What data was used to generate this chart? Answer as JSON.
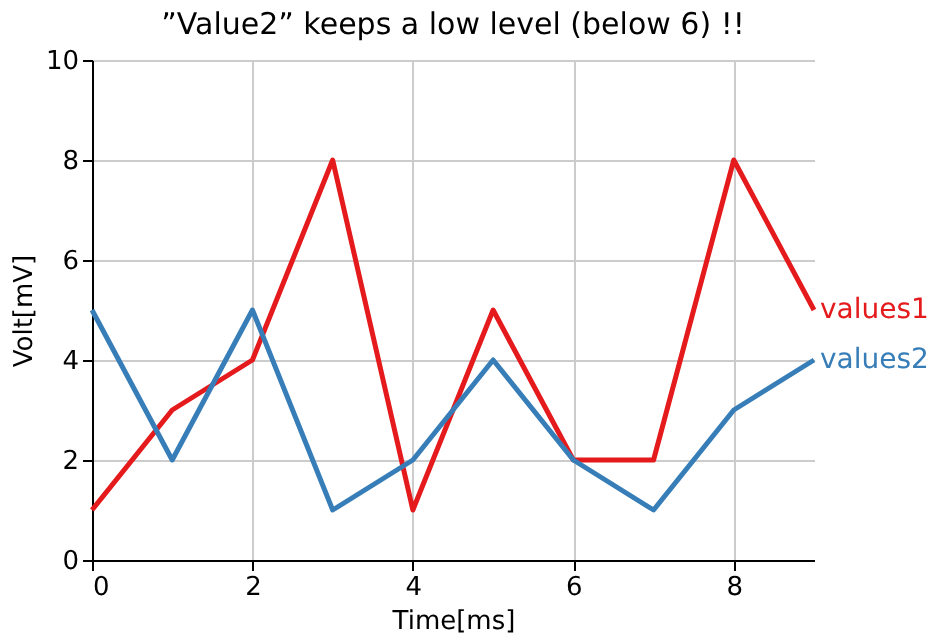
{
  "chart_data": {
    "type": "line",
    "title": "”Value2” keeps a low level (below 6) !!",
    "xlabel": "Time[ms]",
    "ylabel": "Volt[mV]",
    "x": [
      0,
      1,
      2,
      3,
      4,
      5,
      6,
      7,
      8,
      9
    ],
    "series": [
      {
        "name": "values1",
        "color": "#e41a1c",
        "values": [
          1,
          3,
          4,
          8,
          1,
          5,
          2,
          2,
          8,
          5
        ]
      },
      {
        "name": "values2",
        "color": "#377eb8",
        "values": [
          5,
          2,
          5,
          1,
          2,
          4,
          2,
          1,
          3,
          4
        ]
      }
    ],
    "xlim": [
      0,
      9
    ],
    "ylim": [
      0,
      10
    ],
    "xticks": [
      0,
      2,
      4,
      6,
      8
    ],
    "yticks": [
      0,
      2,
      4,
      6,
      8,
      10
    ],
    "grid": true,
    "legend": false,
    "line_style": "solid"
  }
}
